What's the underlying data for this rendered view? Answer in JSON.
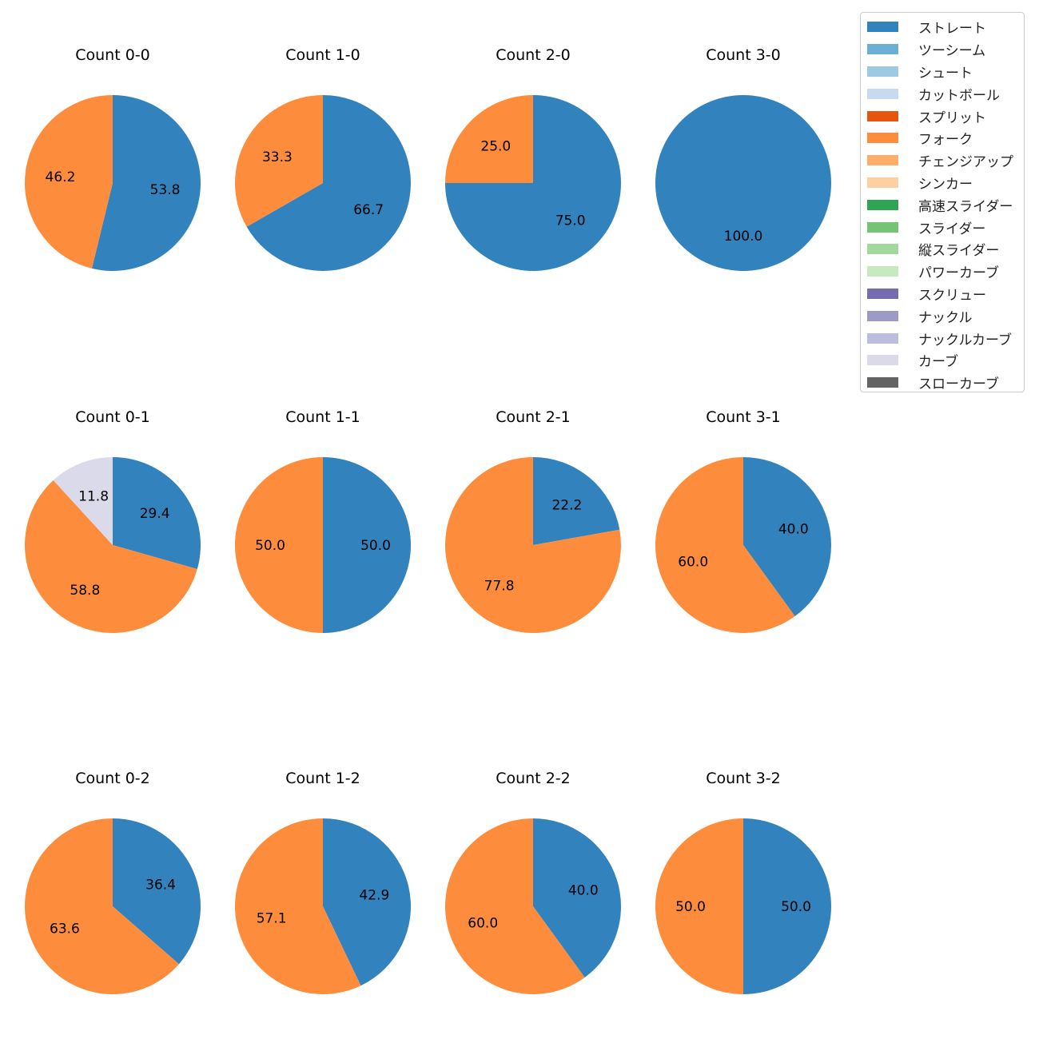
{
  "chart_data": {
    "type": "pie",
    "start_angle": 90,
    "direction": "clockwise",
    "legend_placement": "top-right",
    "legend": [
      {
        "label": "ストレート",
        "color": "#3182bd"
      },
      {
        "label": "ツーシーム",
        "color": "#6baed6"
      },
      {
        "label": "シュート",
        "color": "#9ecae1"
      },
      {
        "label": "カットボール",
        "color": "#c6dbef"
      },
      {
        "label": "スプリット",
        "color": "#e6550d"
      },
      {
        "label": "フォーク",
        "color": "#fd8d3c"
      },
      {
        "label": "チェンジアップ",
        "color": "#fdae6b"
      },
      {
        "label": "シンカー",
        "color": "#fdd0a2"
      },
      {
        "label": "高速スライダー",
        "color": "#31a354"
      },
      {
        "label": "スライダー",
        "color": "#74c476"
      },
      {
        "label": "縦スライダー",
        "color": "#a1d99b"
      },
      {
        "label": "パワーカーブ",
        "color": "#c7e9c0"
      },
      {
        "label": "スクリュー",
        "color": "#756bb1"
      },
      {
        "label": "ナックル",
        "color": "#9e9ac8"
      },
      {
        "label": "ナックルカーブ",
        "color": "#bcbddc"
      },
      {
        "label": "カーブ",
        "color": "#dadaeb"
      },
      {
        "label": "スローカーブ",
        "color": "#636363"
      }
    ],
    "pies": [
      {
        "title": "Count 0-0",
        "slices": [
          {
            "name": "ストレート",
            "value": 53.8
          },
          {
            "name": "フォーク",
            "value": 46.2
          }
        ]
      },
      {
        "title": "Count 1-0",
        "slices": [
          {
            "name": "ストレート",
            "value": 66.7
          },
          {
            "name": "フォーク",
            "value": 33.3
          }
        ]
      },
      {
        "title": "Count 2-0",
        "slices": [
          {
            "name": "ストレート",
            "value": 75.0
          },
          {
            "name": "フォーク",
            "value": 25.0
          }
        ]
      },
      {
        "title": "Count 3-0",
        "slices": [
          {
            "name": "ストレート",
            "value": 100.0
          }
        ]
      },
      {
        "title": "Count 0-1",
        "slices": [
          {
            "name": "ストレート",
            "value": 29.4
          },
          {
            "name": "フォーク",
            "value": 58.8
          },
          {
            "name": "カーブ",
            "value": 11.8
          }
        ]
      },
      {
        "title": "Count 1-1",
        "slices": [
          {
            "name": "ストレート",
            "value": 50.0
          },
          {
            "name": "フォーク",
            "value": 50.0
          }
        ]
      },
      {
        "title": "Count 2-1",
        "slices": [
          {
            "name": "ストレート",
            "value": 22.2
          },
          {
            "name": "フォーク",
            "value": 77.8
          }
        ]
      },
      {
        "title": "Count 3-1",
        "slices": [
          {
            "name": "ストレート",
            "value": 40.0
          },
          {
            "name": "フォーク",
            "value": 60.0
          }
        ]
      },
      {
        "title": "Count 0-2",
        "slices": [
          {
            "name": "ストレート",
            "value": 36.4
          },
          {
            "name": "フォーク",
            "value": 63.6
          }
        ]
      },
      {
        "title": "Count 1-2",
        "slices": [
          {
            "name": "ストレート",
            "value": 42.9
          },
          {
            "name": "フォーク",
            "value": 57.1
          }
        ]
      },
      {
        "title": "Count 2-2",
        "slices": [
          {
            "name": "ストレート",
            "value": 40.0
          },
          {
            "name": "フォーク",
            "value": 60.0
          }
        ]
      },
      {
        "title": "Count 3-2",
        "slices": [
          {
            "name": "ストレート",
            "value": 50.0
          },
          {
            "name": "フォーク",
            "value": 50.0
          }
        ]
      }
    ]
  }
}
